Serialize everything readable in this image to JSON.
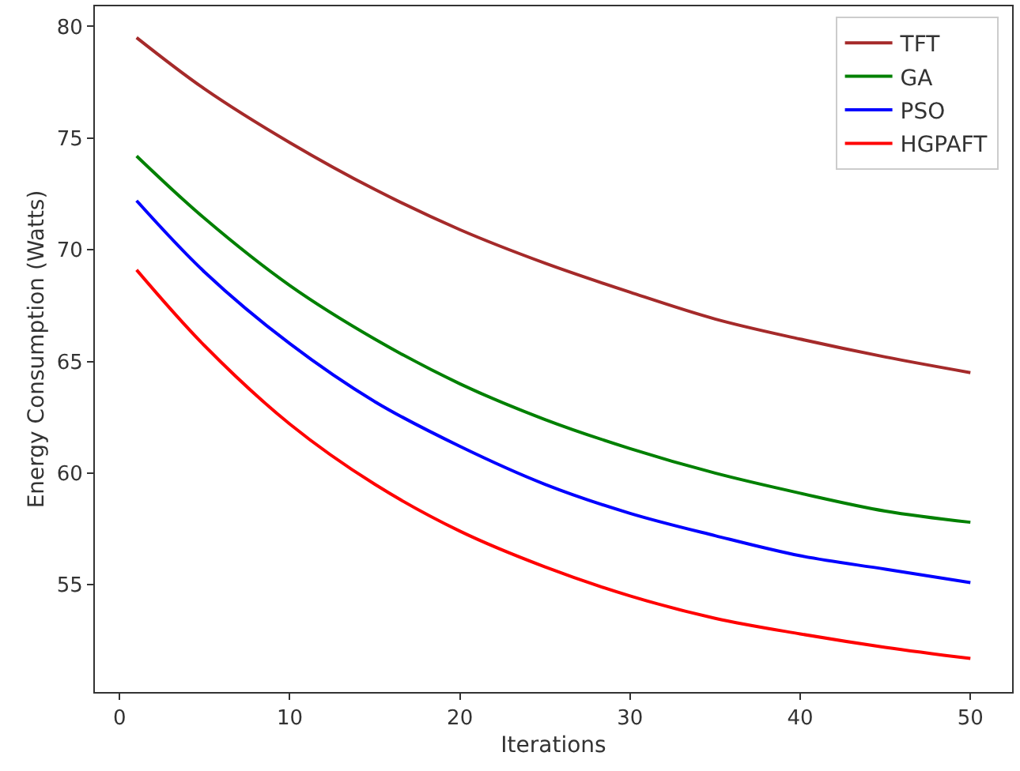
{
  "chart_data": {
    "type": "line",
    "xlabel": "Iterations",
    "ylabel": "Energy Consumption (Watts)",
    "x": [
      1,
      5,
      10,
      15,
      20,
      25,
      30,
      35,
      40,
      45,
      50
    ],
    "series": [
      {
        "name": "TFT",
        "color": "#a52a2a",
        "values": [
          79.5,
          77.2,
          74.8,
          72.7,
          70.9,
          69.4,
          68.1,
          66.9,
          66.0,
          65.2,
          64.5
        ]
      },
      {
        "name": "GA",
        "color": "#008000",
        "values": [
          74.2,
          71.4,
          68.4,
          66.0,
          64.0,
          62.4,
          61.1,
          60.0,
          59.1,
          58.3,
          57.8
        ]
      },
      {
        "name": "PSO",
        "color": "#0000ff",
        "values": [
          72.2,
          69.0,
          65.8,
          63.2,
          61.2,
          59.5,
          58.2,
          57.2,
          56.3,
          55.7,
          55.1
        ]
      },
      {
        "name": "HGPAFT",
        "color": "#ff0000",
        "values": [
          69.1,
          65.7,
          62.2,
          59.5,
          57.4,
          55.8,
          54.5,
          53.5,
          52.8,
          52.2,
          51.7
        ]
      }
    ],
    "xlim": [
      -1.45,
      52.45
    ],
    "ylim": [
      50.2,
      80.9
    ],
    "xticks": [
      0,
      10,
      20,
      30,
      40,
      50
    ],
    "yticks": [
      55,
      60,
      65,
      70,
      75,
      80
    ],
    "legend": "top right",
    "marker": "none",
    "line_style": "solid"
  }
}
